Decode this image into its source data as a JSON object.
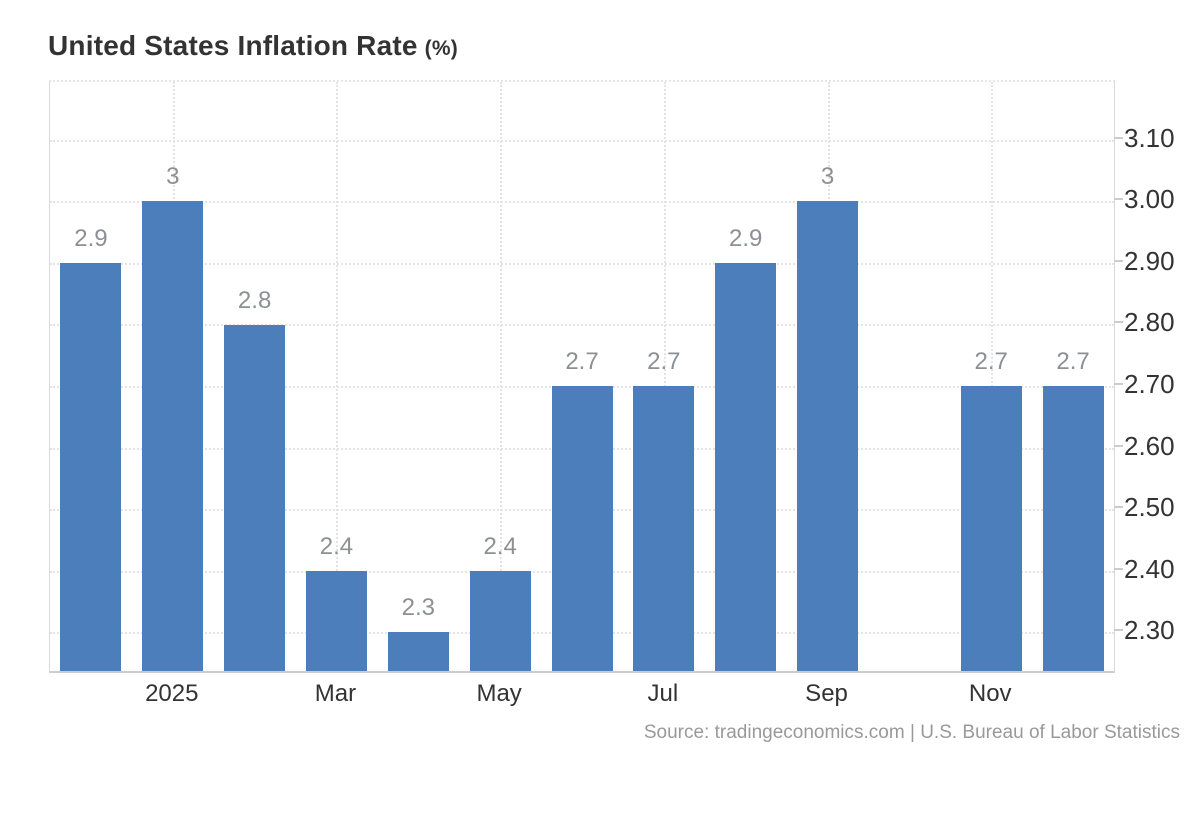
{
  "chart": {
    "title": "United States Inflation Rate",
    "title_unit": "(%)",
    "source": "Source: tradingeconomics.com | U.S. Bureau of Labor Statistics"
  },
  "chart_data": {
    "type": "bar",
    "title": "United States Inflation Rate (%)",
    "xlabel": "",
    "ylabel": "",
    "yaxis_side": "right",
    "ylim": [
      2.237,
      3.194
    ],
    "grid": "dotted",
    "legend": "none",
    "bar_color": "#4d7ebc",
    "value_label_color": "#8c9094",
    "axis_label_color": "#333333",
    "gridline_color": "#e4e4e4",
    "yticks": [
      {
        "value": 2.3,
        "label": "2.30"
      },
      {
        "value": 2.4,
        "label": "2.40"
      },
      {
        "value": 2.5,
        "label": "2.50"
      },
      {
        "value": 2.6,
        "label": "2.60"
      },
      {
        "value": 2.7,
        "label": "2.70"
      },
      {
        "value": 2.8,
        "label": "2.80"
      },
      {
        "value": 2.9,
        "label": "2.90"
      },
      {
        "value": 3.0,
        "label": "3.00"
      },
      {
        "value": 3.1,
        "label": "3.10"
      }
    ],
    "points": [
      {
        "value": 2.9,
        "value_label": "2.9",
        "tick_label": ""
      },
      {
        "value": 3.0,
        "value_label": "3",
        "tick_label": "2025"
      },
      {
        "value": 2.8,
        "value_label": "2.8",
        "tick_label": ""
      },
      {
        "value": 2.4,
        "value_label": "2.4",
        "tick_label": "Mar"
      },
      {
        "value": 2.3,
        "value_label": "2.3",
        "tick_label": ""
      },
      {
        "value": 2.4,
        "value_label": "2.4",
        "tick_label": "May"
      },
      {
        "value": 2.7,
        "value_label": "2.7",
        "tick_label": ""
      },
      {
        "value": 2.7,
        "value_label": "2.7",
        "tick_label": "Jul"
      },
      {
        "value": 2.9,
        "value_label": "2.9",
        "tick_label": ""
      },
      {
        "value": 3.0,
        "value_label": "3",
        "tick_label": "Sep"
      },
      {
        "value": null,
        "value_label": "",
        "tick_label": ""
      },
      {
        "value": 2.7,
        "value_label": "2.7",
        "tick_label": "Nov"
      },
      {
        "value": 2.7,
        "value_label": "2.7",
        "tick_label": ""
      }
    ]
  }
}
